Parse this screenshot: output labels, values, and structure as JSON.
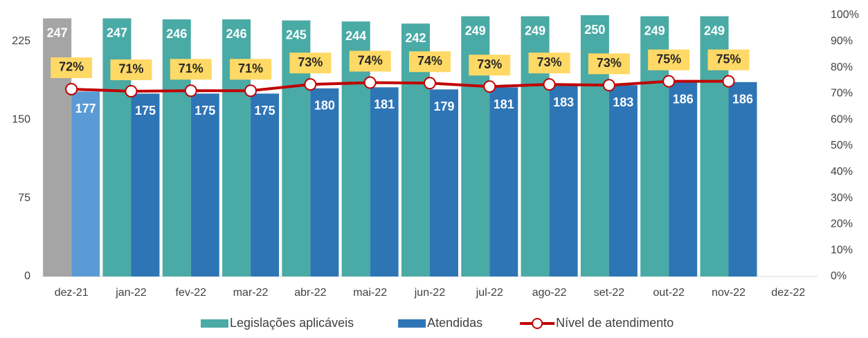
{
  "chart_data": {
    "type": "bar-line",
    "categories": [
      "dez-21",
      "jan-22",
      "fev-22",
      "mar-22",
      "abr-22",
      "mai-22",
      "jun-22",
      "jul-22",
      "ago-22",
      "set-22",
      "out-22",
      "nov-22",
      "dez-22"
    ],
    "series": [
      {
        "name": "Legislações aplicáveis",
        "type": "bar",
        "color": "#4aaaa5",
        "colors": [
          "#a5a5a5",
          "#4aaaa5",
          "#4aaaa5",
          "#4aaaa5",
          "#4aaaa5",
          "#4aaaa5",
          "#4aaaa5",
          "#4aaaa5",
          "#4aaaa5",
          "#4aaaa5",
          "#4aaaa5",
          "#4aaaa5",
          "#4aaaa5"
        ],
        "values": [
          247,
          247,
          246,
          246,
          245,
          244,
          242,
          249,
          249,
          250,
          249,
          249,
          null
        ]
      },
      {
        "name": "Atendidas",
        "type": "bar",
        "color": "#2e75b6",
        "colors": [
          "#5b9bd5",
          "#2e75b6",
          "#2e75b6",
          "#2e75b6",
          "#2e75b6",
          "#2e75b6",
          "#2e75b6",
          "#2e75b6",
          "#2e75b6",
          "#2e75b6",
          "#2e75b6",
          "#2e75b6",
          "#2e75b6"
        ],
        "values": [
          177,
          175,
          175,
          175,
          180,
          181,
          179,
          181,
          183,
          183,
          186,
          186,
          null
        ]
      },
      {
        "name": "Nível de atendimento",
        "type": "line",
        "axis": "y2",
        "color": "#c00000",
        "values": [
          71.7,
          70.9,
          71.1,
          71.1,
          73.5,
          74.2,
          74.0,
          72.7,
          73.5,
          73.2,
          74.7,
          74.7,
          null
        ],
        "value_labels": [
          "72%",
          "71%",
          "71%",
          "71%",
          "73%",
          "74%",
          "74%",
          "73%",
          "73%",
          "73%",
          "75%",
          "75%",
          null
        ]
      }
    ],
    "ylim": [
      0,
      250
    ],
    "yticks": [
      0,
      75,
      150,
      225
    ],
    "y2lim": [
      0,
      100
    ],
    "y2ticks": [
      {
        "value": 0,
        "label": "0%"
      },
      {
        "value": 10,
        "label": "10%"
      },
      {
        "value": 20,
        "label": "20%"
      },
      {
        "value": 30,
        "label": "30%"
      },
      {
        "value": 40,
        "label": "40%"
      },
      {
        "value": 50,
        "label": "50%"
      },
      {
        "value": 60,
        "label": "60%"
      },
      {
        "value": 70,
        "label": "70%"
      },
      {
        "value": 80,
        "label": "80%"
      },
      {
        "value": 90,
        "label": "90%"
      },
      {
        "value": 100,
        "label": "100%"
      }
    ],
    "legend": "bottom"
  }
}
